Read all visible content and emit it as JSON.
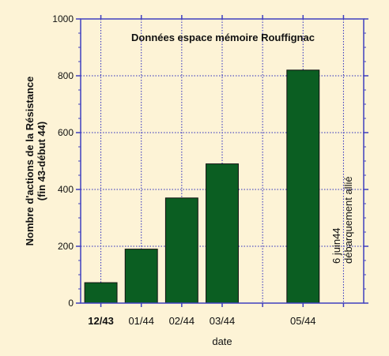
{
  "chart_data": {
    "type": "bar",
    "title": "Données espace mémoire Rouffignac",
    "ylabel_lines": [
      "Nombre d'actions de la Résistance",
      "(fin 43-début 44)"
    ],
    "xlabel": "date",
    "categories": [
      "12/43",
      "01/44",
      "02/44",
      "03/44",
      "",
      "05/44",
      ""
    ],
    "values": [
      72,
      190,
      370,
      490,
      null,
      820,
      null
    ],
    "ylim": [
      0,
      1000
    ],
    "yticks": [
      0,
      200,
      400,
      600,
      800,
      1000
    ],
    "grid": true,
    "bold_category": "12/43",
    "annotation_lines": [
      "6 juin44",
      "débarquement allié"
    ],
    "colors": {
      "background": "#fdf3d6",
      "bar": "#0b5e22",
      "frame": "#3f3fbf",
      "grid": "#2b2bbf"
    }
  }
}
